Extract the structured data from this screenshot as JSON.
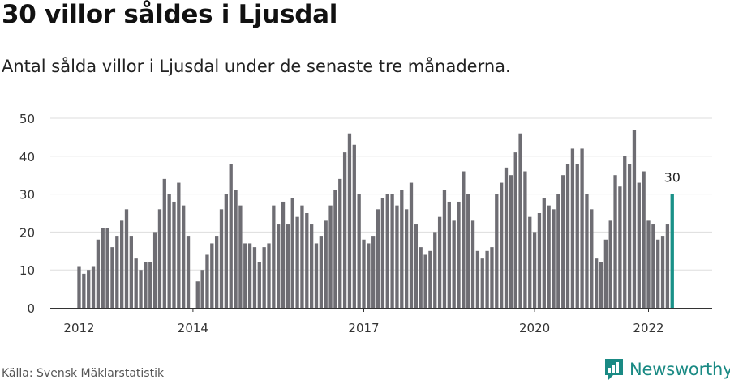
{
  "header": {
    "title": "30 villor såldes i Ljusdal",
    "subtitle": "Antal sålda villor i Ljusdal under de senaste tre månaderna."
  },
  "footer": {
    "source": "Källa: Svensk Mäklarstatistik",
    "brand": "Newsworthy"
  },
  "colors": {
    "bar": "#6e6d73",
    "highlight": "#1a9188",
    "grid": "#dddddd",
    "brand": "#1a8a84"
  },
  "chart_data": {
    "type": "bar",
    "title": "30 villor såldes i Ljusdal",
    "xlabel": "",
    "ylabel": "",
    "ylim": [
      0,
      50
    ],
    "yticks": [
      0,
      10,
      20,
      30,
      40,
      50
    ],
    "x_tick_labels": [
      {
        "label": "2012",
        "index": 0
      },
      {
        "label": "2014",
        "index": 24
      },
      {
        "label": "2017",
        "index": 60
      },
      {
        "label": "2020",
        "index": 96
      },
      {
        "label": "2022",
        "index": 120
      }
    ],
    "highlight_label": "30",
    "values": [
      11,
      9,
      10,
      11,
      18,
      21,
      21,
      16,
      19,
      23,
      26,
      19,
      13,
      10,
      12,
      12,
      20,
      26,
      34,
      30,
      28,
      33,
      27,
      19,
      0,
      7,
      10,
      14,
      17,
      19,
      26,
      30,
      38,
      31,
      27,
      17,
      17,
      16,
      12,
      16,
      17,
      27,
      22,
      28,
      22,
      29,
      24,
      27,
      25,
      22,
      17,
      19,
      23,
      27,
      31,
      34,
      41,
      46,
      43,
      30,
      18,
      17,
      19,
      26,
      29,
      30,
      30,
      27,
      31,
      26,
      33,
      22,
      16,
      14,
      15,
      20,
      24,
      31,
      28,
      23,
      28,
      36,
      30,
      23,
      15,
      13,
      15,
      16,
      30,
      33,
      37,
      35,
      41,
      46,
      36,
      24,
      20,
      25,
      29,
      27,
      26,
      30,
      35,
      38,
      42,
      38,
      42,
      30,
      26,
      13,
      12,
      18,
      23,
      35,
      32,
      40,
      38,
      47,
      33,
      36,
      23,
      22,
      18,
      19,
      22,
      30
    ],
    "highlight_index": 125
  }
}
